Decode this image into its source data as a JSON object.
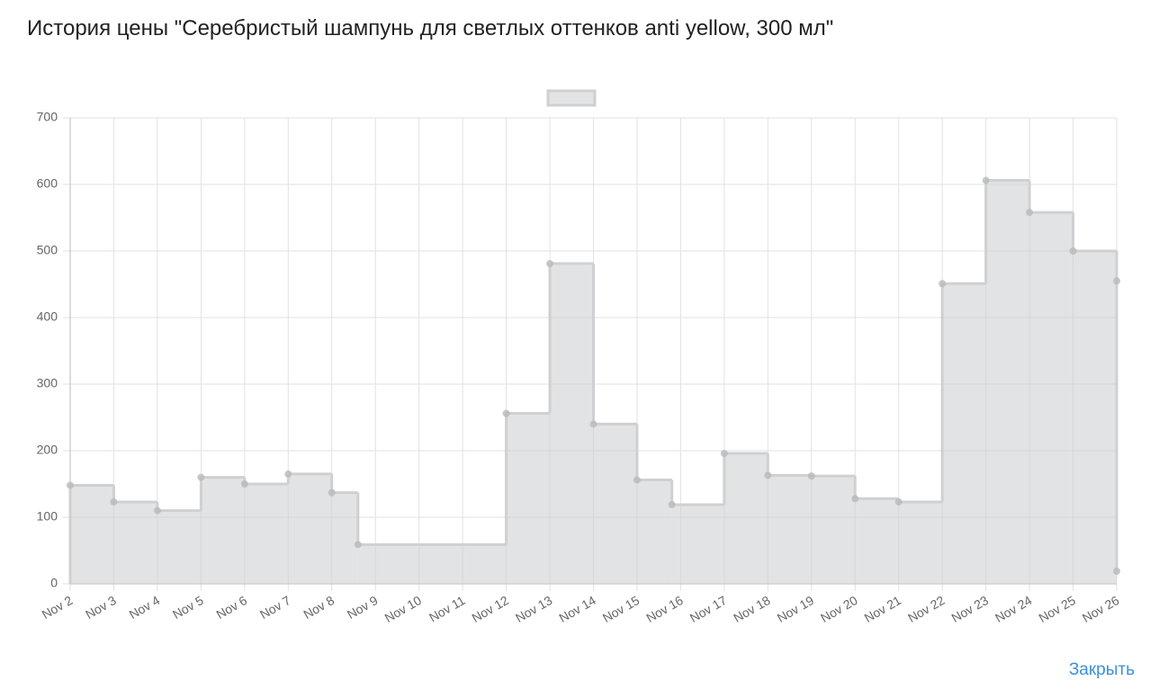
{
  "chart_data": {
    "type": "step-area",
    "title": "История цены \"Серебристый шампунь для светлых оттенков anti yellow, 300 мл\"",
    "x": [
      2,
      3,
      4,
      5,
      6,
      7,
      8,
      8.6,
      12,
      13,
      14,
      15,
      15.8,
      17,
      18,
      19,
      20,
      21,
      22,
      23,
      24,
      25,
      26,
      26
    ],
    "series": [
      {
        "color": "#cfd0d2",
        "values": [
          148,
          123,
          110,
          160,
          150,
          165,
          137,
          59,
          256,
          481,
          240,
          156,
          119,
          196,
          163,
          162,
          128,
          123,
          451,
          606,
          558,
          500,
          455,
          19
        ]
      }
    ],
    "xlim": [
      2,
      26
    ],
    "xticks": [
      {
        "value": 2,
        "label": "Nov 2"
      },
      {
        "value": 3,
        "label": "Nov 3"
      },
      {
        "value": 4,
        "label": "Nov 4"
      },
      {
        "value": 5,
        "label": "Nov 5"
      },
      {
        "value": 6,
        "label": "Nov 6"
      },
      {
        "value": 7,
        "label": "Nov 7"
      },
      {
        "value": 8,
        "label": "Nov 8"
      },
      {
        "value": 9,
        "label": "Nov 9"
      },
      {
        "value": 10,
        "label": "Nov 10"
      },
      {
        "value": 11,
        "label": "Nov 11"
      },
      {
        "value": 12,
        "label": "Nov 12"
      },
      {
        "value": 13,
        "label": "Nov 13"
      },
      {
        "value": 14,
        "label": "Nov 14"
      },
      {
        "value": 15,
        "label": "Nov 15"
      },
      {
        "value": 16,
        "label": "Nov 16"
      },
      {
        "value": 17,
        "label": "Nov 17"
      },
      {
        "value": 18,
        "label": "Nov 18"
      },
      {
        "value": 19,
        "label": "Nov 19"
      },
      {
        "value": 20,
        "label": "Nov 20"
      },
      {
        "value": 21,
        "label": "Nov 21"
      },
      {
        "value": 22,
        "label": "Nov 22"
      },
      {
        "value": 23,
        "label": "Nov 23"
      },
      {
        "value": 24,
        "label": "Nov 24"
      },
      {
        "value": 25,
        "label": "Nov 25"
      },
      {
        "value": 26,
        "label": "Nov 26"
      }
    ],
    "ylim": [
      0,
      700
    ],
    "yticks": [
      0,
      100,
      200,
      300,
      400,
      500,
      600,
      700
    ],
    "grid": true,
    "legend": "top"
  },
  "close_button": "Закрыть"
}
